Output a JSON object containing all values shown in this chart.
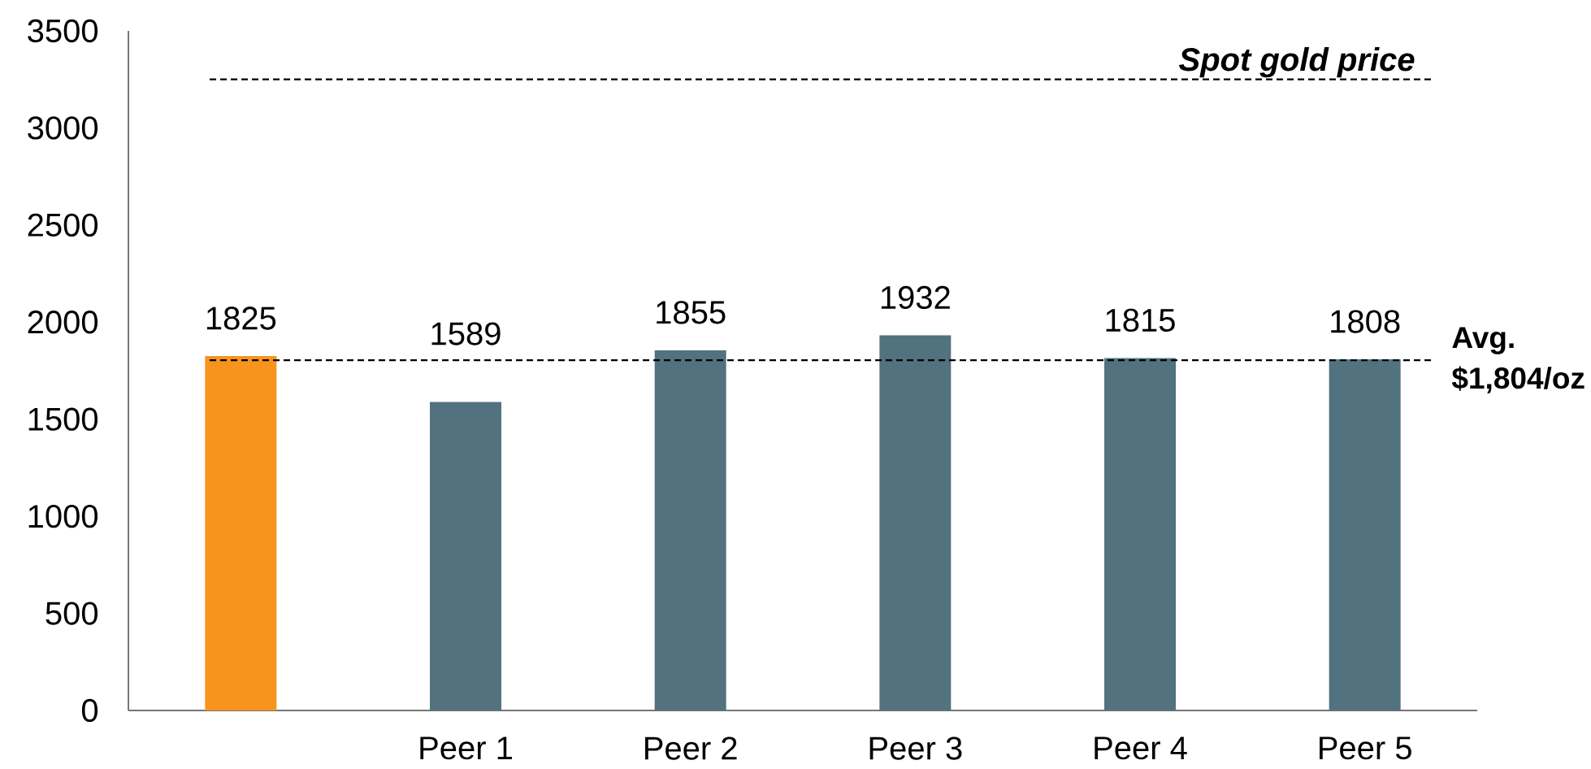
{
  "chart_data": {
    "type": "bar",
    "categories": [
      null,
      "Peer 1",
      "Peer 2",
      "Peer 3",
      "Peer 4",
      "Peer 5"
    ],
    "values": [
      1825,
      1589,
      1855,
      1932,
      1815,
      1808
    ],
    "colors": [
      "#f7941e",
      "#51727e",
      "#51727e",
      "#51727e",
      "#51727e",
      "#51727e"
    ],
    "ylim": [
      0,
      3500
    ],
    "yticks": [
      0,
      500,
      1000,
      1500,
      2000,
      2500,
      3000,
      3500
    ],
    "data_labels": true,
    "ref_lines": [
      {
        "axis": "y",
        "value": 3250,
        "label": "Spot gold price",
        "line_style": "dashed",
        "color": "#000000"
      },
      {
        "axis": "y",
        "value": 1804,
        "label": "Avg. $1,804/oz",
        "line_style": "dashed",
        "color": "#000000"
      }
    ]
  }
}
